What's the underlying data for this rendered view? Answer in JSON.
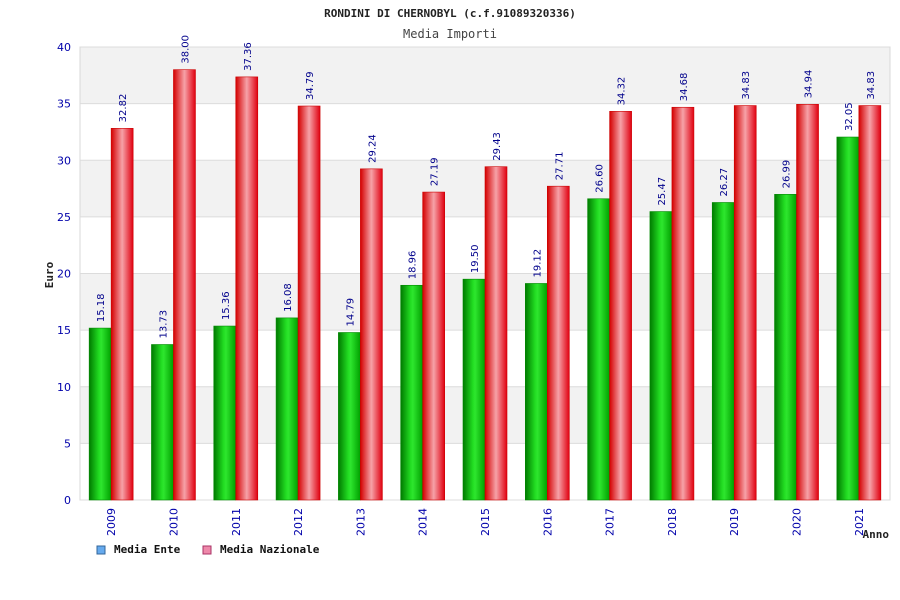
{
  "chart_data": {
    "type": "bar",
    "title": "RONDINI DI CHERNOBYL (c.f.91089320336)",
    "subtitle": "Media Importi",
    "xlabel": "Anno",
    "ylabel": "Euro",
    "ylim": [
      0,
      40
    ],
    "yticks": [
      "0",
      "5",
      "10",
      "15",
      "20",
      "25",
      "30",
      "35",
      "40"
    ],
    "grid": true,
    "legend_position": "bottom-left",
    "categories": [
      "2009",
      "2010",
      "2011",
      "2012",
      "2013",
      "2014",
      "2015",
      "2016",
      "2017",
      "2018",
      "2019",
      "2020",
      "2021"
    ],
    "series": [
      {
        "name": "Media Ente",
        "color": "#00c000",
        "legend_color": "#66aaee",
        "values": [
          15.18,
          13.73,
          15.36,
          16.08,
          14.79,
          18.96,
          19.5,
          19.12,
          26.6,
          25.47,
          26.27,
          26.99,
          32.05
        ],
        "labels": [
          "15.18",
          "13.73",
          "15.36",
          "16.08",
          "14.79",
          "18.96",
          "19.50",
          "19.12",
          "26.60",
          "25.47",
          "26.27",
          "26.99",
          "32.05"
        ]
      },
      {
        "name": "Media Nazionale",
        "color": "#ee0000",
        "legend_color": "#ee88aa",
        "values": [
          32.82,
          38.0,
          37.36,
          34.79,
          29.24,
          27.19,
          29.43,
          27.71,
          34.32,
          34.68,
          34.83,
          34.94,
          34.83
        ],
        "labels": [
          "32.82",
          "38.00",
          "37.36",
          "34.79",
          "29.24",
          "27.19",
          "29.43",
          "27.71",
          "34.32",
          "34.68",
          "34.83",
          "34.94",
          "34.83"
        ]
      }
    ]
  }
}
